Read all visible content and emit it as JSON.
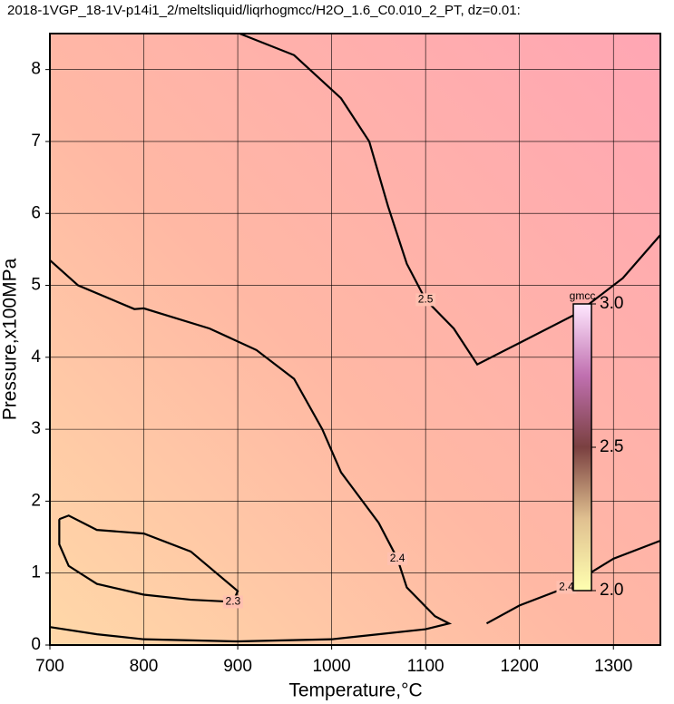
{
  "chart_data": {
    "type": "contour",
    "title": "2018-1VGP_18-1V-p14i1_2/meltsliquid/liqrhogmcc/H2O_1.6_C0.010_2_PT, dz=0.01:",
    "x_label": "Temperature,°C",
    "y_label": "Pressure,x100MPa",
    "xlim": [
      700,
      1350
    ],
    "ylim": [
      0,
      8.5
    ],
    "xticks": [
      700,
      800,
      900,
      1000,
      1100,
      1200,
      1300
    ],
    "yticks": [
      0,
      1,
      2,
      3,
      4,
      5,
      6,
      7,
      8
    ],
    "grid": true,
    "contours": [
      {
        "level": 2.3,
        "x": [
          710,
          720,
          750,
          800,
          850,
          900,
          895,
          850,
          800,
          750,
          720,
          710,
          710
        ],
        "y": [
          1.75,
          1.8,
          1.6,
          1.55,
          1.3,
          0.75,
          0.6,
          0.63,
          0.7,
          0.85,
          1.1,
          1.4,
          1.75
        ]
      },
      {
        "level": 2.4,
        "x": [
          700,
          730,
          790,
          800,
          870,
          920,
          960,
          990,
          1010,
          1050,
          1070,
          1080,
          1110,
          1125,
          1100,
          1050,
          1000,
          900,
          800,
          750,
          700
        ],
        "y": [
          5.35,
          5.0,
          4.67,
          4.68,
          4.4,
          4.1,
          3.7,
          3.0,
          2.4,
          1.7,
          1.2,
          0.8,
          0.4,
          0.3,
          0.22,
          0.15,
          0.08,
          0.05,
          0.08,
          0.15,
          0.25
        ]
      },
      {
        "level": 2.4,
        "x": [
          1165,
          1200,
          1250,
          1300,
          1350
        ],
        "y": [
          0.3,
          0.55,
          0.8,
          1.2,
          1.45
        ]
      },
      {
        "level": 2.5,
        "x": [
          902,
          960,
          1010,
          1040,
          1060,
          1080,
          1100,
          1130,
          1155,
          1200,
          1260,
          1310,
          1350
        ],
        "y": [
          8.5,
          8.2,
          7.6,
          7.0,
          6.1,
          5.3,
          4.8,
          4.4,
          3.9,
          4.2,
          4.6,
          5.1,
          5.7
        ]
      }
    ],
    "colorbar": {
      "label": "gmcc",
      "lim": [
        2.0,
        3.0
      ],
      "ticks": [
        {
          "value": 2,
          "label": "2.0"
        },
        {
          "value": 2.5,
          "label": "2.5"
        },
        {
          "value": 3,
          "label": "3.0"
        }
      ]
    }
  }
}
